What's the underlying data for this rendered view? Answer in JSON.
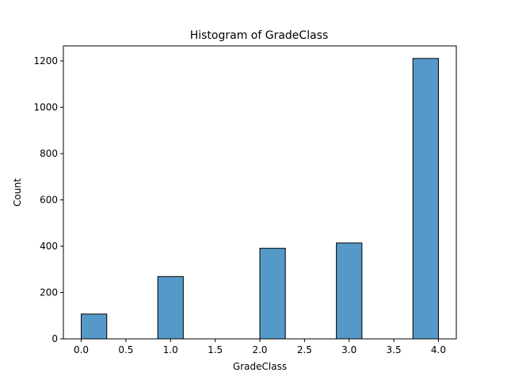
{
  "chart_data": {
    "type": "bar",
    "title": "Histogram of GradeClass",
    "xlabel": "GradeClass",
    "ylabel": "Count",
    "xlim": [
      -0.2,
      4.2
    ],
    "ylim": [
      0,
      1265
    ],
    "xticks": [
      0.0,
      0.5,
      1.0,
      1.5,
      2.0,
      2.5,
      3.0,
      3.5,
      4.0
    ],
    "xtick_labels": [
      "0.0",
      "0.5",
      "1.0",
      "1.5",
      "2.0",
      "2.5",
      "3.0",
      "3.5",
      "4.0"
    ],
    "yticks": [
      0,
      200,
      400,
      600,
      800,
      1000,
      1200
    ],
    "ytick_labels": [
      "0",
      "200",
      "400",
      "600",
      "800",
      "1000",
      "1200"
    ],
    "bins": [
      {
        "start": 0.0,
        "end": 0.2857,
        "count": 107
      },
      {
        "start": 0.2857,
        "end": 0.5714,
        "count": 0
      },
      {
        "start": 0.5714,
        "end": 0.8571,
        "count": 0
      },
      {
        "start": 0.8571,
        "end": 1.1429,
        "count": 269
      },
      {
        "start": 1.1429,
        "end": 1.4286,
        "count": 0
      },
      {
        "start": 1.4286,
        "end": 1.7143,
        "count": 0
      },
      {
        "start": 1.7143,
        "end": 2.0,
        "count": 0
      },
      {
        "start": 2.0,
        "end": 2.2857,
        "count": 391
      },
      {
        "start": 2.2857,
        "end": 2.5714,
        "count": 0
      },
      {
        "start": 2.5714,
        "end": 2.8571,
        "count": 0
      },
      {
        "start": 2.8571,
        "end": 3.1429,
        "count": 414
      },
      {
        "start": 3.1429,
        "end": 3.4286,
        "count": 0
      },
      {
        "start": 3.4286,
        "end": 3.7143,
        "count": 0
      },
      {
        "start": 3.7143,
        "end": 4.0,
        "count": 1211
      }
    ],
    "bar_color": "#5599c8",
    "edge_color": "#000000",
    "grid": false
  }
}
